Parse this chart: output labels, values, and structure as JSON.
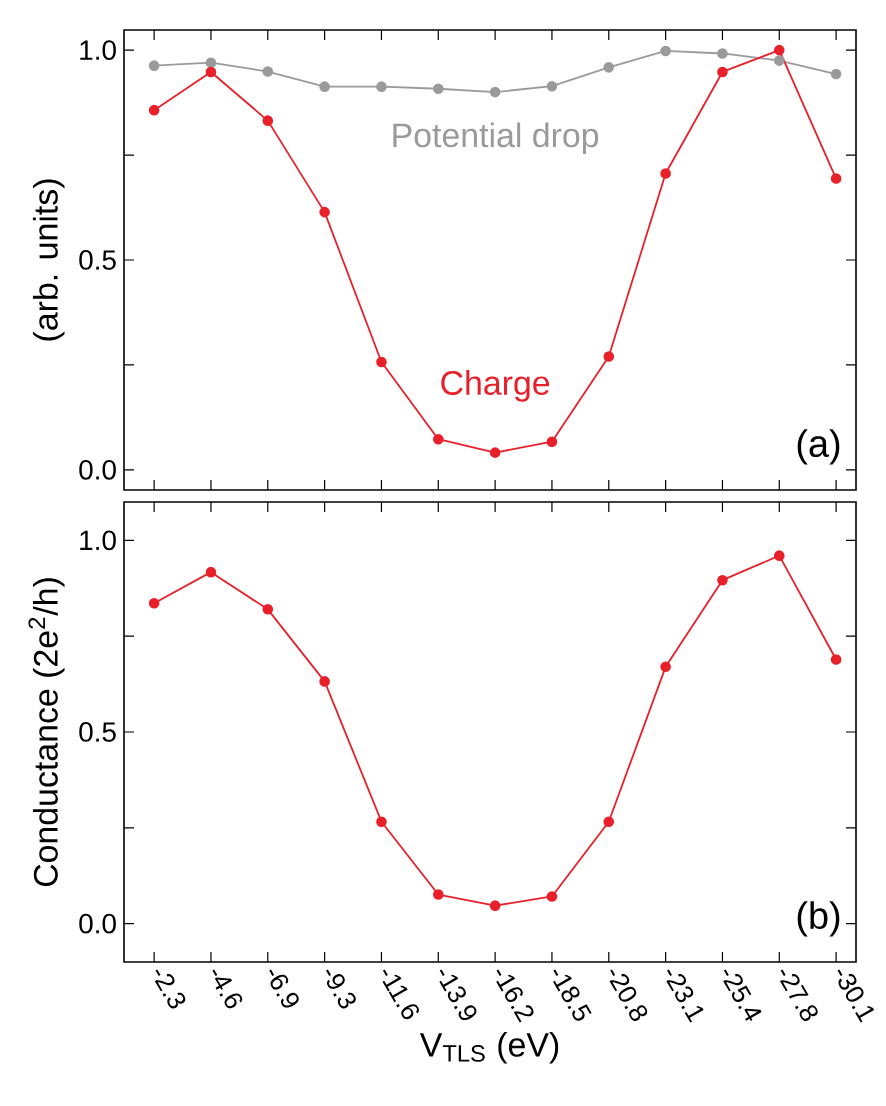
{
  "chart_data": [
    {
      "type": "line",
      "ylabel": "(arb. units)",
      "categories": [
        "-2.3",
        "-4.6",
        "-6.9",
        "-9.3",
        "-11.6",
        "-13.9",
        "-16.2",
        "-18.5",
        "-20.8",
        "-23.1",
        "-25.4",
        "-27.8",
        "-30.1"
      ],
      "ylim": [
        -0.048,
        1.048
      ],
      "tick_labels": "y",
      "marker": "circle",
      "line_style": "solid",
      "grid": false,
      "legend": false,
      "annotations": [
        "(a)"
      ],
      "yticks": [
        {
          "value": 0,
          "label": "0.0"
        },
        {
          "value": 0.25,
          "label": null
        },
        0.5,
        {
          "value": 0.75,
          "label": null
        },
        {
          "value": 1,
          "label": "1.0"
        }
      ],
      "series": [
        {
          "name": "Potential drop",
          "color": "#9a9a9a",
          "values": [
            0.963,
            0.97,
            0.949,
            0.913,
            0.913,
            0.908,
            0.9,
            0.914,
            0.959,
            0.998,
            0.992,
            0.975,
            0.943
          ]
        },
        {
          "name": "Charge",
          "color": "#e8202a",
          "values": [
            0.857,
            0.948,
            0.832,
            0.614,
            0.257,
            0.073,
            0.041,
            0.067,
            0.27,
            0.706,
            0.948,
            1.0,
            0.694
          ]
        }
      ]
    },
    {
      "type": "line",
      "ylabel": "Conductance  (2e$^{2}$/h)",
      "xlabel": "V$_{TLS}$ (eV)",
      "categories": [
        "-2.3",
        "-4.6",
        "-6.9",
        "-9.3",
        "-11.6",
        "-13.9",
        "-16.2",
        "-18.5",
        "-20.8",
        "-23.1",
        "-25.4",
        "-27.8",
        "-30.1"
      ],
      "ylim": [
        -0.1,
        1.1
      ],
      "yticks": [
        {
          "value": 0,
          "label": "0.0"
        },
        {
          "value": 0.25,
          "label": null
        },
        0.5,
        {
          "value": 0.75,
          "label": null
        },
        {
          "value": 1,
          "label": "1.0"
        }
      ],
      "marker": "circle",
      "line_style": "solid",
      "grid": false,
      "legend": false,
      "annotations": [
        "(b)"
      ],
      "series": [
        {
          "color": "#e8202a",
          "values": [
            0.836,
            0.917,
            0.82,
            0.632,
            0.266,
            0.076,
            0.047,
            0.071,
            0.266,
            0.67,
            0.896,
            0.96,
            0.689
          ]
        }
      ]
    }
  ]
}
